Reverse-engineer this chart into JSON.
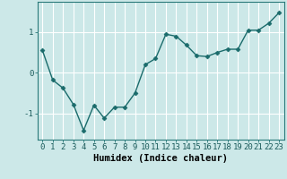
{
  "x": [
    0,
    1,
    2,
    3,
    4,
    5,
    6,
    7,
    8,
    9,
    10,
    11,
    12,
    13,
    14,
    15,
    16,
    17,
    18,
    19,
    20,
    21,
    22,
    23
  ],
  "y": [
    0.55,
    -0.18,
    -0.38,
    -0.78,
    -1.42,
    -0.8,
    -1.12,
    -0.85,
    -0.85,
    -0.5,
    0.2,
    0.35,
    0.95,
    0.9,
    0.68,
    0.42,
    0.4,
    0.5,
    0.58,
    0.58,
    1.05,
    1.05,
    1.22,
    1.48
  ],
  "line_color": "#1a6b6b",
  "marker": "D",
  "marker_size": 2.5,
  "bg_color": "#cce8e8",
  "grid_color": "#ffffff",
  "xlabel": "Humidex (Indice chaleur)",
  "xlim": [
    -0.5,
    23.5
  ],
  "ylim": [
    -1.65,
    1.75
  ],
  "yticks": [
    -1,
    0,
    1
  ],
  "xlabel_fontsize": 7.5,
  "tick_fontsize": 6.5,
  "linewidth": 1.0
}
